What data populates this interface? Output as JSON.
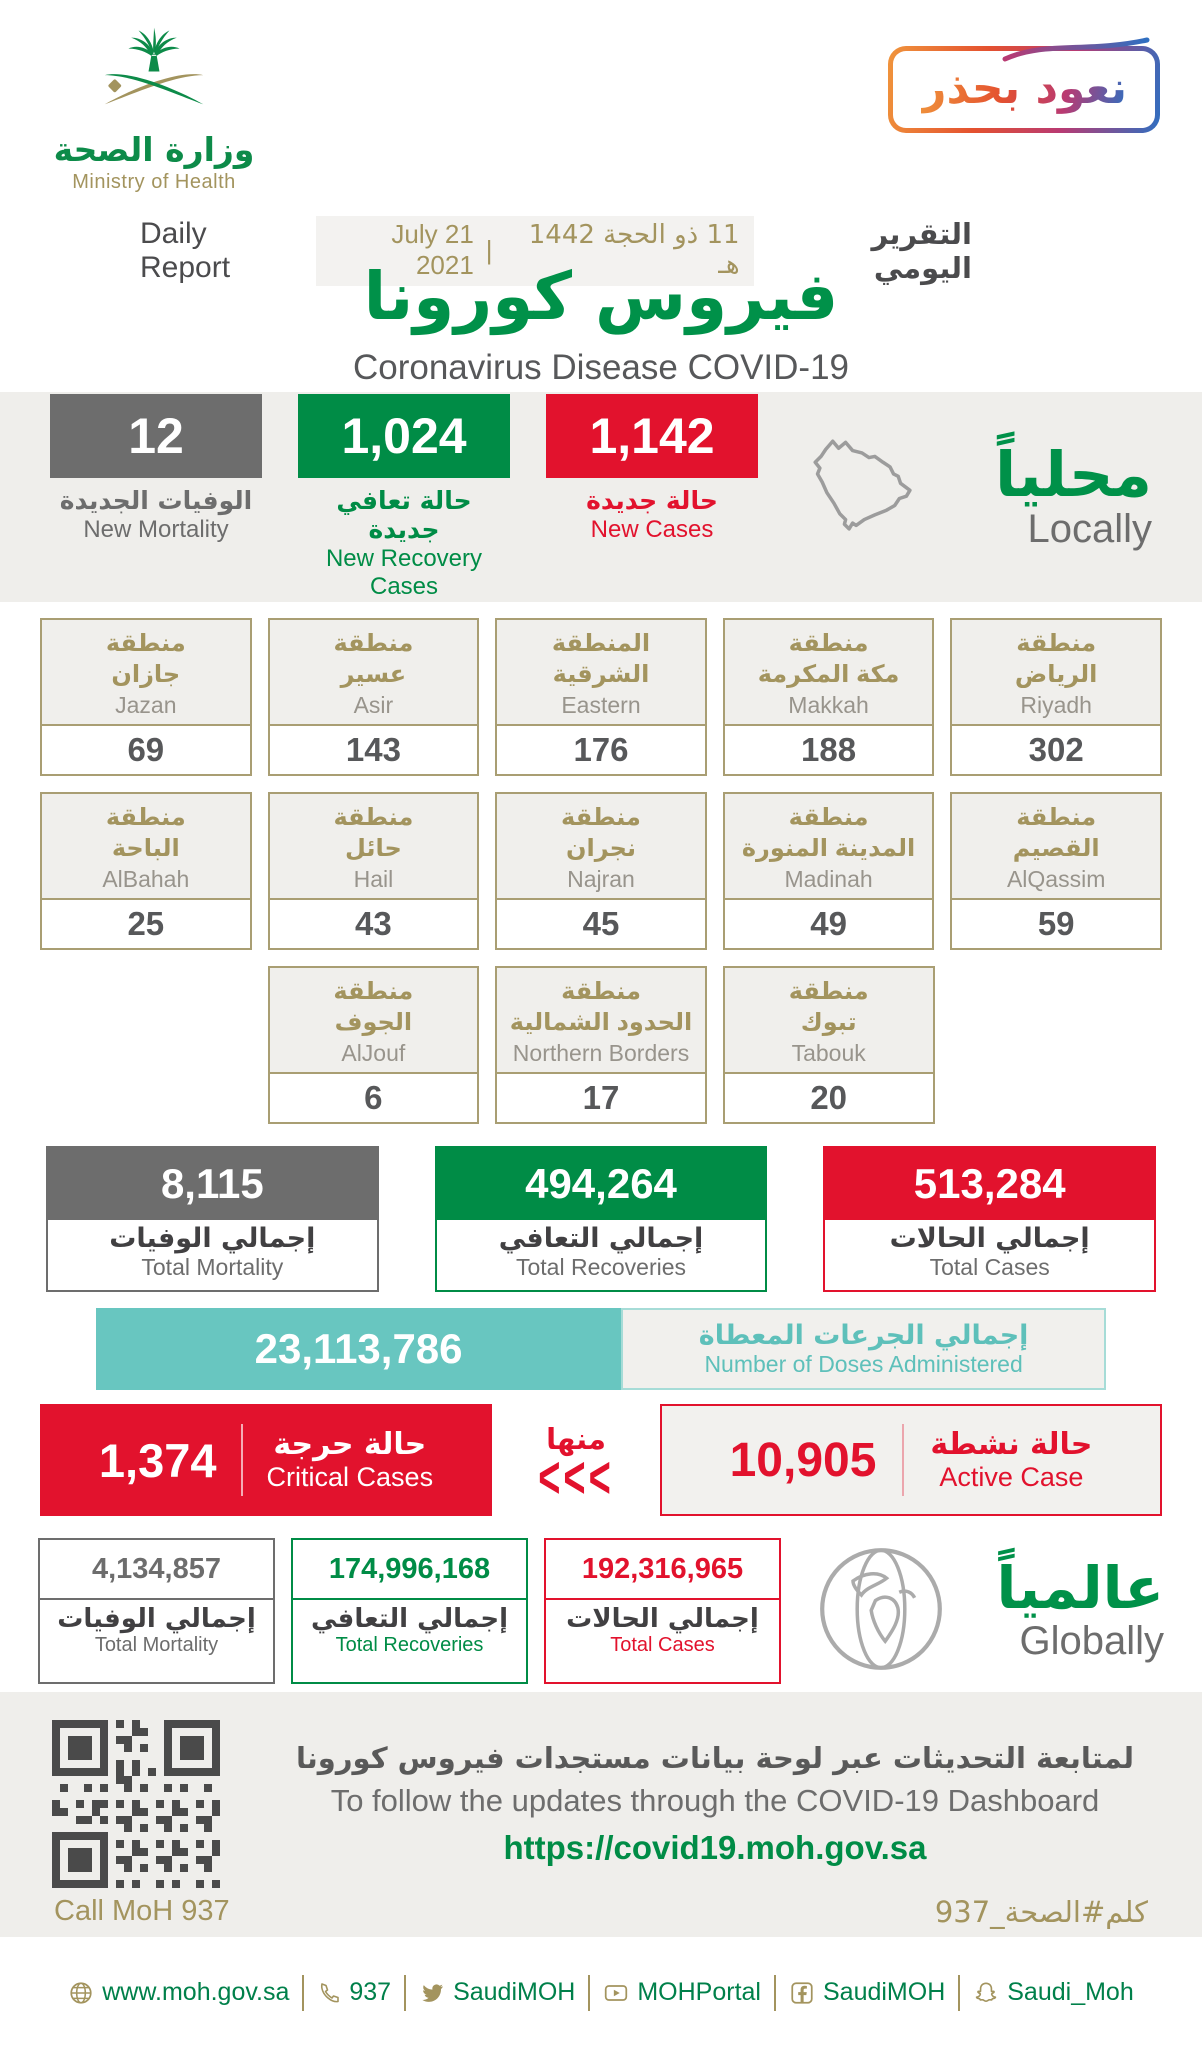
{
  "theme": {
    "green": "#008c46",
    "red": "#e2122d",
    "gray": "#6d6d6d",
    "gold": "#a3945e",
    "teal": "#68c6c0",
    "band": "#efeeeb"
  },
  "header": {
    "ministry_ar": "وزارة الصحة",
    "ministry_en": "Ministry of Health",
    "badge": "نعود بحذر",
    "daily_report_en": "Daily Report",
    "daily_report_ar": "التقرير اليومي",
    "date_hijri": "11 ذو الحجة 1442 هـ",
    "date_separator": "|",
    "date_gregorian": "21 July 2021",
    "title_ar": "فيروس كورونا",
    "title_en": "Coronavirus Disease COVID-19"
  },
  "locally": {
    "heading_ar": "محلياً",
    "heading_en": "Locally",
    "stats": [
      {
        "value": "12",
        "label_ar": "الوفيات الجديدة",
        "label_en": "New Mortality",
        "color": "#6d6d6d"
      },
      {
        "value": "1,024",
        "label_ar": "حالة تعافي جديدة",
        "label_en": "New Recovery Cases",
        "color": "#008c46"
      },
      {
        "value": "1,142",
        "label_ar": "حالة جديدة",
        "label_en": "New Cases",
        "color": "#e2122d"
      }
    ]
  },
  "regions": {
    "row1": [
      {
        "ar_line1": "منطقة",
        "ar_line2": "جازان",
        "en": "Jazan",
        "value": "69"
      },
      {
        "ar_line1": "منطقة",
        "ar_line2": "عسير",
        "en": "Asir",
        "value": "143"
      },
      {
        "ar_line1": "المنطقة",
        "ar_line2": "الشرقية",
        "en": "Eastern",
        "value": "176"
      },
      {
        "ar_line1": "منطقة",
        "ar_line2": "مكة المكرمة",
        "en": "Makkah",
        "value": "188"
      },
      {
        "ar_line1": "منطقة",
        "ar_line2": "الرياض",
        "en": "Riyadh",
        "value": "302"
      }
    ],
    "row2": [
      {
        "ar_line1": "منطقة",
        "ar_line2": "الباحة",
        "en": "AlBahah",
        "value": "25"
      },
      {
        "ar_line1": "منطقة",
        "ar_line2": "حائل",
        "en": "Hail",
        "value": "43"
      },
      {
        "ar_line1": "منطقة",
        "ar_line2": "نجران",
        "en": "Najran",
        "value": "45"
      },
      {
        "ar_line1": "منطقة",
        "ar_line2": "المدينة المنورة",
        "en": "Madinah",
        "value": "49"
      },
      {
        "ar_line1": "منطقة",
        "ar_line2": "القصيم",
        "en": "AlQassim",
        "value": "59"
      }
    ],
    "row3": [
      {
        "ar_line1": "منطقة",
        "ar_line2": "الجوف",
        "en": "AlJouf",
        "value": "6"
      },
      {
        "ar_line1": "منطقة",
        "ar_line2": "الحدود الشمالية",
        "en": "Northern Borders",
        "value": "17"
      },
      {
        "ar_line1": "منطقة",
        "ar_line2": "تبوك",
        "en": "Tabouk",
        "value": "20"
      }
    ]
  },
  "totals": [
    {
      "value": "8,115",
      "label_ar": "إجمالي الوفيات",
      "label_en": "Total Mortality",
      "color": "#6d6d6d"
    },
    {
      "value": "494,264",
      "label_ar": "إجمالي التعافي",
      "label_en": "Total Recoveries",
      "color": "#008c46"
    },
    {
      "value": "513,284",
      "label_ar": "إجمالي الحالات",
      "label_en": "Total Cases",
      "color": "#e2122d"
    }
  ],
  "doses": {
    "value": "23,113,786",
    "label_ar": "إجمالي الجرعات المعطاة",
    "label_en": "Number of Doses Administered"
  },
  "critical": {
    "value": "1,374",
    "label_ar": "حالة حرجة",
    "label_en": "Critical Cases"
  },
  "of_which": {
    "label_ar": "منها",
    "chevrons": "<<<"
  },
  "active": {
    "value": "10,905",
    "label_ar": "حالة نشطة",
    "label_en": "Active Case"
  },
  "globally": {
    "heading_ar": "عالمياً",
    "heading_en": "Globally",
    "stats": [
      {
        "value": "4,134,857",
        "label_ar": "إجمالي الوفيات",
        "label_en": "Total Mortality",
        "color": "#6d6d6d"
      },
      {
        "value": "174,996,168",
        "label_ar": "إجمالي التعافي",
        "label_en": "Total Recoveries",
        "color": "#008c46"
      },
      {
        "value": "192,316,965",
        "label_ar": "إجمالي الحالات",
        "label_en": "Total Cases",
        "color": "#e2122d"
      }
    ]
  },
  "dashboard": {
    "line_ar": "لمتابعة التحديثات عبر لوحة بيانات مستجدات فيروس كورونا",
    "line_en": "To follow the updates through the COVID-19 Dashboard",
    "url": "https://covid19.moh.gov.sa"
  },
  "call_moh": {
    "en": "Call MoH 937",
    "ar": "كلم#الصحة_937"
  },
  "footer": {
    "items": [
      {
        "icon": "globe-icon",
        "label": "www.moh.gov.sa"
      },
      {
        "icon": "phone-icon",
        "label": "937"
      },
      {
        "icon": "twitter-icon",
        "label": "SaudiMOH"
      },
      {
        "icon": "youtube-icon",
        "label": "MOHPortal"
      },
      {
        "icon": "facebook-icon",
        "label": "SaudiMOH"
      },
      {
        "icon": "snapchat-icon",
        "label": "Saudi_Moh"
      }
    ]
  }
}
